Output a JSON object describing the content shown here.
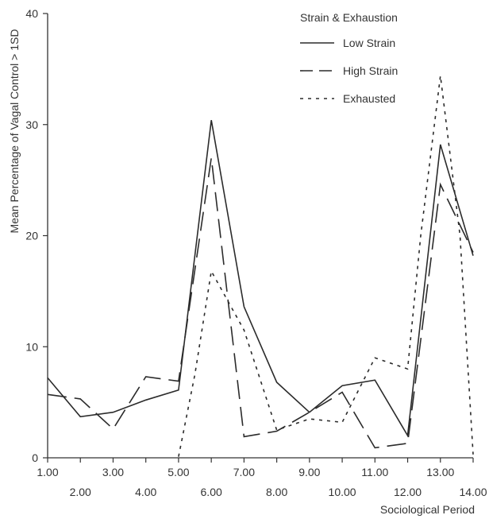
{
  "chart_data": {
    "type": "line",
    "title": "",
    "xlabel": "Sociological Period",
    "ylabel": "Mean Percentage of Vagal Control > 1SD",
    "xlim": [
      1,
      14
    ],
    "ylim": [
      0,
      40
    ],
    "x_ticks_upper": [
      "1.00",
      "3.00",
      "5.00",
      "7.00",
      "9.00",
      "11.00",
      "13.00"
    ],
    "x_ticks_lower": [
      "2.00",
      "4.00",
      "6.00",
      "8.00",
      "10.00",
      "12.00",
      "14.00"
    ],
    "y_ticks": [
      "0",
      "10",
      "20",
      "30",
      "40"
    ],
    "grid": false,
    "legend": {
      "title": "Strain & Exhaustion",
      "position": "top-right",
      "entries": [
        "Low Strain",
        "High Strain",
        "Exhausted"
      ]
    },
    "series": [
      {
        "name": "Low Strain",
        "style": "solid",
        "points": [
          [
            1,
            7.2
          ],
          [
            2,
            3.7
          ],
          [
            3,
            4.1
          ],
          [
            4,
            5.2
          ],
          [
            5,
            6.1
          ],
          [
            6,
            30.4
          ],
          [
            7,
            13.6
          ],
          [
            8,
            6.8
          ],
          [
            9,
            4.1
          ],
          [
            10,
            6.5
          ],
          [
            11,
            7.0
          ],
          [
            12,
            2.0
          ],
          [
            13,
            28.2
          ],
          [
            14,
            18.2
          ]
        ]
      },
      {
        "name": "High Strain",
        "style": "dashed",
        "points": [
          [
            1,
            5.7
          ],
          [
            2,
            5.3
          ],
          [
            3,
            2.6
          ],
          [
            4,
            7.3
          ],
          [
            5,
            6.9
          ],
          [
            6,
            27.0
          ],
          [
            7,
            1.9
          ],
          [
            8,
            2.4
          ],
          [
            9,
            4.1
          ],
          [
            10,
            5.9
          ],
          [
            11,
            0.9
          ],
          [
            12,
            1.3
          ],
          [
            13,
            24.6
          ],
          [
            14,
            18.5
          ]
        ]
      },
      {
        "name": "Exhausted",
        "style": "dotted",
        "points": [
          [
            5,
            0.1
          ],
          [
            5.5,
            7.5
          ],
          [
            6,
            16.8
          ],
          [
            7,
            11.5
          ],
          [
            8,
            2.5
          ],
          [
            9,
            3.5
          ],
          [
            10,
            3.2
          ],
          [
            11,
            9.0
          ],
          [
            12,
            8.0
          ],
          [
            12.4,
            20.0
          ],
          [
            13,
            34.4
          ],
          [
            13.6,
            20.0
          ],
          [
            14,
            0.3
          ]
        ]
      }
    ],
    "colors": {
      "line": "#2b2b2b",
      "axis": "#333333",
      "background": "#ffffff"
    }
  }
}
